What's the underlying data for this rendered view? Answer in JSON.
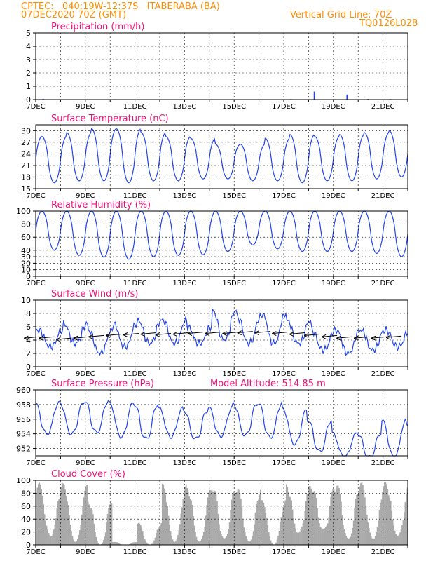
{
  "header": {
    "left_line1": "CPTEC:   040:19W-12:37S   ITABERABA (BA)",
    "left_line2": "07DEC2020 70Z (GMT)",
    "right_line1": "Vertical Grid Line: 70Z",
    "right_line2": "TQ0126L028"
  },
  "colors": {
    "header_text": "#ff8c00",
    "panel_title": "#ee1177",
    "series_line": "#2244ee",
    "cloud_fill": "#a9a9a9",
    "wind_arrow": "#000000"
  },
  "chart_data": [
    {
      "id": "precip",
      "type": "bar",
      "title": "Precipitation (mm/h)",
      "ylim": [
        0,
        5
      ],
      "yticks": [
        0,
        1,
        2,
        3,
        4,
        5
      ],
      "grid": true,
      "x_range_days": [
        7,
        22
      ],
      "x_ticks": [
        {
          "day": 7,
          "label": "7DEC"
        },
        {
          "day": 9,
          "label": "9DEC"
        },
        {
          "day": 11,
          "label": "11DEC"
        },
        {
          "day": 13,
          "label": "13DEC"
        },
        {
          "day": 15,
          "label": "15DEC"
        },
        {
          "day": 17,
          "label": "17DEC"
        },
        {
          "day": 19,
          "label": "19DEC"
        },
        {
          "day": 21,
          "label": "21DEC"
        }
      ],
      "points": [
        {
          "day": 7.3,
          "value": 0.06
        },
        {
          "day": 8.5,
          "value": 0.02
        },
        {
          "day": 10.2,
          "value": 0.03
        },
        {
          "day": 12.8,
          "value": 0.02
        },
        {
          "day": 16.0,
          "value": 0.03
        },
        {
          "day": 17.3,
          "value": 0.04
        },
        {
          "day": 18.23,
          "value": 0.6
        },
        {
          "day": 19.0,
          "value": 0.03
        },
        {
          "day": 19.55,
          "value": 0.38
        },
        {
          "day": 20.4,
          "value": 0.05
        },
        {
          "day": 21.3,
          "value": 0.04
        }
      ]
    },
    {
      "id": "temp",
      "type": "line",
      "title": "Surface Temperature (nC)",
      "ylim": [
        15,
        31.5
      ],
      "yticks": [
        15,
        18,
        21,
        24,
        27,
        30
      ],
      "grid": true,
      "x_range_days": [
        7,
        22
      ],
      "daily": {
        "start_day": 7,
        "phase_day": 0.25,
        "maxima": [
          28.5,
          29.5,
          30.5,
          30.5,
          29.5,
          28.5,
          28,
          26.5,
          26.5,
          28,
          29,
          28.5,
          29,
          29.5,
          30
        ],
        "minima": [
          16.5,
          17,
          17,
          16.5,
          17,
          17,
          17.5,
          17.5,
          17,
          17,
          16.5,
          17,
          17,
          17.5,
          18
        ]
      }
    },
    {
      "id": "rh",
      "type": "line",
      "title": "Relative Humidity (%)",
      "ylim": [
        0,
        100
      ],
      "yticks": [
        0,
        10,
        20,
        30,
        40,
        60,
        80,
        100
      ],
      "grid": true,
      "x_range_days": [
        7,
        22
      ],
      "daily": {
        "start_day": 7,
        "phase_day": 0.25,
        "maxima": [
          100,
          100,
          100,
          100,
          100,
          100,
          100,
          100,
          100,
          100,
          100,
          100,
          100,
          100,
          100
        ],
        "minima": [
          40,
          32,
          29,
          26,
          30,
          32,
          33,
          38,
          48,
          42,
          38,
          38,
          38,
          35,
          30
        ]
      }
    },
    {
      "id": "wind",
      "type": "line",
      "title": "Surface Wind (m/s)",
      "ylim": [
        0,
        10
      ],
      "yticks": [
        0,
        2,
        4,
        6,
        8,
        10
      ],
      "grid": true,
      "x_range_days": [
        7,
        22
      ],
      "daily": {
        "start_day": 7,
        "phase_day": 0.1,
        "maxima": [
          5.5,
          6.5,
          5.5,
          6.5,
          7,
          7,
          6,
          8.5,
          7.5,
          8,
          7,
          5.5,
          5.5,
          5.5,
          5.5
        ],
        "minima": [
          3,
          3.5,
          2,
          3,
          3.5,
          3.5,
          3.5,
          4,
          3.5,
          3.5,
          3.5,
          2.5,
          2,
          2.5,
          3
        ]
      },
      "vectors": [
        {
          "day": 7.15,
          "speed": 4.5
        },
        {
          "day": 7.75,
          "speed": 4.5
        },
        {
          "day": 8.45,
          "speed": 4.3
        },
        {
          "day": 9.15,
          "speed": 4.5
        },
        {
          "day": 9.75,
          "speed": 4.7
        },
        {
          "day": 10.45,
          "speed": 4.9
        },
        {
          "day": 11.15,
          "speed": 5.0
        },
        {
          "day": 11.85,
          "speed": 5.1
        },
        {
          "day": 12.45,
          "speed": 5.0
        },
        {
          "day": 13.15,
          "speed": 5.1
        },
        {
          "day": 13.75,
          "speed": 5.2
        },
        {
          "day": 14.45,
          "speed": 5.2
        },
        {
          "day": 15.15,
          "speed": 5.2
        },
        {
          "day": 15.75,
          "speed": 5.3
        },
        {
          "day": 16.45,
          "speed": 5.3
        },
        {
          "day": 17.15,
          "speed": 5.2
        },
        {
          "day": 17.85,
          "speed": 5.1
        },
        {
          "day": 18.45,
          "speed": 4.9
        },
        {
          "day": 19.15,
          "speed": 4.7
        },
        {
          "day": 19.75,
          "speed": 4.5
        },
        {
          "day": 20.45,
          "speed": 4.5
        },
        {
          "day": 21.15,
          "speed": 4.5
        },
        {
          "day": 21.75,
          "speed": 4.6
        }
      ]
    },
    {
      "id": "pressure",
      "type": "line",
      "title": "Surface Pressure (hPa)",
      "annotation": "Model Altitude: 514.85 m",
      "ylim": [
        951,
        960
      ],
      "yticks": [
        952,
        954,
        956,
        958,
        960
      ],
      "grid": true,
      "x_range_days": [
        7,
        22
      ],
      "daily": {
        "start_day": 7,
        "phase_day": 0.95,
        "maxima": [
          958.2,
          958.5,
          958.2,
          958.1,
          957.5,
          957.2,
          957.6,
          958.1,
          958.2,
          957.3,
          955.9,
          954.0,
          954.1,
          955.8,
          955.2
        ],
        "minima": [
          954.0,
          954.2,
          953.6,
          953.3,
          953.6,
          953.3,
          953.7,
          953.8,
          953.5,
          952.6,
          951.6,
          950.8,
          950.8,
          950.8,
          950.5
        ]
      }
    },
    {
      "id": "cloud",
      "type": "bar",
      "title": "Cloud Cover (%)",
      "ylim": [
        0,
        100
      ],
      "yticks": [
        0,
        20,
        40,
        60,
        80,
        100
      ],
      "grid": true,
      "x_range_days": [
        7,
        22
      ],
      "x_tick_labels_bottom": true,
      "daily": {
        "start_day": 7,
        "phase_day": 0.08,
        "maxima": [
          98,
          95,
          70,
          5,
          35,
          95,
          90,
          95,
          90,
          70,
          95,
          95,
          98,
          98,
          98
        ],
        "minima": [
          15,
          5,
          0,
          0,
          0,
          5,
          5,
          10,
          5,
          0,
          20,
          25,
          10,
          10,
          15
        ]
      }
    }
  ]
}
